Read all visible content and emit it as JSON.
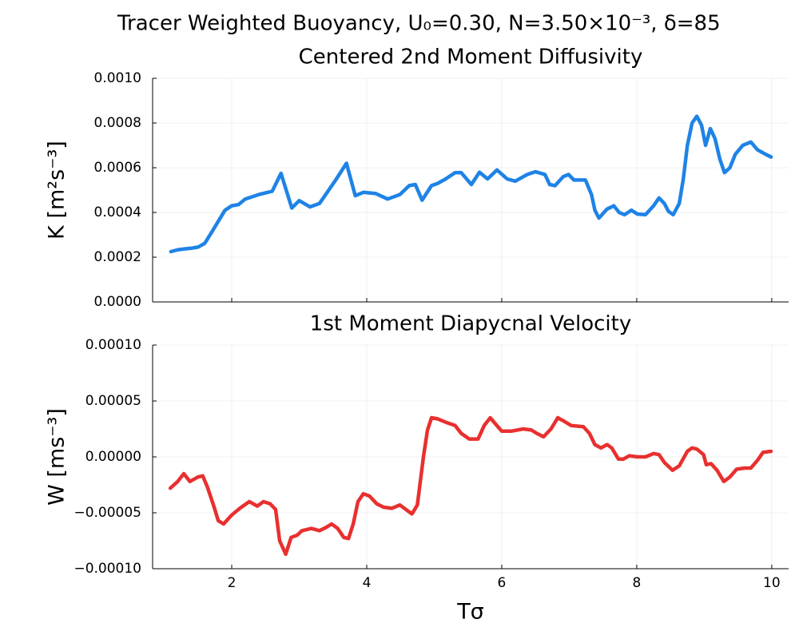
{
  "title": "Tracer Weighted Buoyancy, U₀=0.30, N=3.50×10⁻³, δ=85",
  "chart_data": [
    {
      "type": "line",
      "title": "Centered 2nd Moment Diffusivity",
      "y_label": "K [m²s⁻³]",
      "xlim": [
        0.828,
        10.25
      ],
      "xticks": [
        2,
        4,
        6,
        8,
        10
      ],
      "xtick_labels": false,
      "ylim": [
        0,
        0.001
      ],
      "yticks": [
        {
          "value": 0,
          "label": "0.0000"
        },
        {
          "value": 0.0002,
          "label": "0.0002"
        },
        {
          "value": 0.0004,
          "label": "0.0004"
        },
        {
          "value": 0.0006,
          "label": "0.0006"
        },
        {
          "value": 0.0008,
          "label": "0.0008"
        },
        {
          "value": 0.001,
          "label": "0.0010"
        }
      ],
      "grid": true,
      "x": [
        1.1,
        1.2,
        1.3,
        1.4,
        1.5,
        1.6,
        1.7,
        1.8,
        1.9,
        2.0,
        2.1,
        2.2,
        2.4,
        2.6,
        2.73,
        2.89,
        3.0,
        3.16,
        3.3,
        3.54,
        3.7,
        3.83,
        3.95,
        4.13,
        4.31,
        4.49,
        4.63,
        4.72,
        4.82,
        4.96,
        5.05,
        5.17,
        5.31,
        5.4,
        5.55,
        5.67,
        5.79,
        5.93,
        6.08,
        6.2,
        6.38,
        6.5,
        6.64,
        6.71,
        6.79,
        6.91,
        6.99,
        7.07,
        7.24,
        7.33,
        7.38,
        7.44,
        7.56,
        7.66,
        7.74,
        7.82,
        7.92,
        8.01,
        8.13,
        8.25,
        8.33,
        8.41,
        8.47,
        8.54,
        8.63,
        8.69,
        8.75,
        8.82,
        8.89,
        8.96,
        9.02,
        9.09,
        9.16,
        9.23,
        9.3,
        9.38,
        9.46,
        9.57,
        9.69,
        9.79,
        9.91,
        9.99
      ],
      "series": [
        {
          "color": "#1f83e6",
          "values": [
            0.000225,
            0.000233,
            0.000237,
            0.00024,
            0.000245,
            0.000262,
            0.00031,
            0.00036,
            0.00041,
            0.00043,
            0.000435,
            0.00046,
            0.00048,
            0.000495,
            0.000575,
            0.00042,
            0.000453,
            0.000425,
            0.00044,
            0.000545,
            0.00062,
            0.000475,
            0.00049,
            0.000485,
            0.00046,
            0.00048,
            0.00052,
            0.000525,
            0.000455,
            0.00052,
            0.00053,
            0.00055,
            0.000578,
            0.000578,
            0.000525,
            0.00058,
            0.00055,
            0.00059,
            0.00055,
            0.00054,
            0.00057,
            0.000582,
            0.00057,
            0.000525,
            0.00052,
            0.00056,
            0.00057,
            0.000545,
            0.000545,
            0.00048,
            0.00041,
            0.000375,
            0.000415,
            0.00043,
            0.0004,
            0.00039,
            0.00041,
            0.000393,
            0.00039,
            0.00043,
            0.000465,
            0.00044,
            0.000405,
            0.00039,
            0.00044,
            0.00055,
            0.0007,
            0.0008,
            0.00083,
            0.00079,
            0.0007,
            0.000775,
            0.00073,
            0.00064,
            0.000578,
            0.0006,
            0.00066,
            0.0007,
            0.000715,
            0.00068,
            0.00066,
            0.000648
          ]
        }
      ]
    },
    {
      "type": "line",
      "title": "1st Moment Diapycnal Velocity",
      "y_label": "W [ms⁻³]",
      "x_label": "Tσ",
      "xlim": [
        0.828,
        10.25
      ],
      "xticks": [
        2,
        4,
        6,
        8,
        10
      ],
      "ylim": [
        -0.0001,
        0.0001
      ],
      "yticks": [
        {
          "value": -0.0001,
          "label": "−0.00010"
        },
        {
          "value": -5e-05,
          "label": "−0.00005"
        },
        {
          "value": 0,
          "label": "0.00000"
        },
        {
          "value": 5e-05,
          "label": "0.00005"
        },
        {
          "value": 0.0001,
          "label": "0.00010"
        }
      ],
      "grid": true,
      "x": [
        1.09,
        1.2,
        1.29,
        1.38,
        1.5,
        1.57,
        1.64,
        1.74,
        1.8,
        1.88,
        2.0,
        2.12,
        2.26,
        2.38,
        2.47,
        2.57,
        2.65,
        2.71,
        2.8,
        2.88,
        2.97,
        3.04,
        3.18,
        3.3,
        3.4,
        3.48,
        3.57,
        3.66,
        3.73,
        3.8,
        3.87,
        3.95,
        4.04,
        4.15,
        4.25,
        4.37,
        4.49,
        4.58,
        4.67,
        4.75,
        4.84,
        4.9,
        4.96,
        5.05,
        5.17,
        5.31,
        5.4,
        5.52,
        5.65,
        5.74,
        5.83,
        5.9,
        6.0,
        6.14,
        6.32,
        6.44,
        6.52,
        6.62,
        6.73,
        6.83,
        6.92,
        7.03,
        7.21,
        7.3,
        7.38,
        7.47,
        7.56,
        7.63,
        7.73,
        7.8,
        7.89,
        8.01,
        8.13,
        8.25,
        8.33,
        8.41,
        8.53,
        8.63,
        8.75,
        8.82,
        8.89,
        8.99,
        9.03,
        9.1,
        9.19,
        9.29,
        9.38,
        9.48,
        9.6,
        9.69,
        9.79,
        9.87,
        9.99
      ],
      "series": [
        {
          "color": "#e8302f",
          "values": [
            -2.8e-05,
            -2.2e-05,
            -1.5e-05,
            -2.2e-05,
            -1.8e-05,
            -1.7e-05,
            -2.7e-05,
            -4.5e-05,
            -5.7e-05,
            -6e-05,
            -5.2e-05,
            -4.6e-05,
            -4e-05,
            -4.4e-05,
            -4e-05,
            -4.2e-05,
            -4.7e-05,
            -7.5e-05,
            -8.7e-05,
            -7.2e-05,
            -7e-05,
            -6.6e-05,
            -6.4e-05,
            -6.6e-05,
            -6.3e-05,
            -6e-05,
            -6.4e-05,
            -7.2e-05,
            -7.3e-05,
            -6e-05,
            -4e-05,
            -3.3e-05,
            -3.5e-05,
            -4.2e-05,
            -4.5e-05,
            -4.6e-05,
            -4.3e-05,
            -4.7e-05,
            -5.1e-05,
            -4.3e-05,
            0,
            2.4e-05,
            3.5e-05,
            3.4e-05,
            3.1e-05,
            2.8e-05,
            2.1e-05,
            1.6e-05,
            1.6e-05,
            2.8e-05,
            3.5e-05,
            3e-05,
            2.3e-05,
            2.3e-05,
            2.5e-05,
            2.4e-05,
            2.1e-05,
            1.8e-05,
            2.5e-05,
            3.5e-05,
            3.2e-05,
            2.8e-05,
            2.7e-05,
            2.1e-05,
            1.1e-05,
            8e-06,
            1.1e-05,
            8e-06,
            -2e-06,
            -2e-06,
            1e-06,
            0,
            0,
            3e-06,
            2e-06,
            -5e-06,
            -1.2e-05,
            -8e-06,
            5e-06,
            8e-06,
            7e-06,
            2e-06,
            -7e-06,
            -6e-06,
            -1.2e-05,
            -2.2e-05,
            -1.8e-05,
            -1.1e-05,
            -1e-05,
            -1e-05,
            -3e-06,
            4e-06,
            5e-06
          ]
        }
      ]
    }
  ]
}
